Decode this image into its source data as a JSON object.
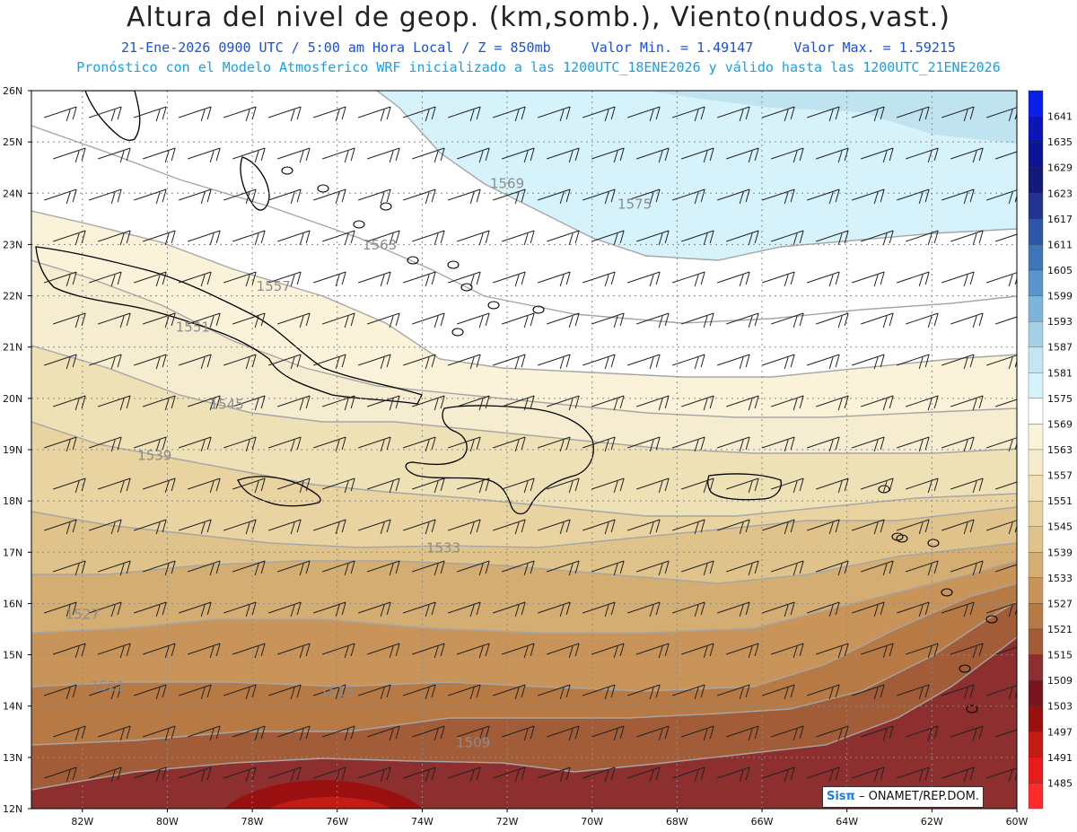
{
  "header": {
    "title": "Altura del nivel de geop. (km,somb.), Viento(nudos,vast.)",
    "valid_time": "21-Ene-2026  0900 UTC / 5:00 am Hora Local / Z = 850mb",
    "min_label": "Valor Min. = 1.49147",
    "max_label": "Valor Max. = 1.59215",
    "model_line": "Pronóstico con el Modelo Atmosferico WRF inicializado a las 1200UTC_18ENE2026 y válido hasta las  1200UTC_21ENE2026"
  },
  "logo": {
    "brand": "Sisπ",
    "text": "– ONAMET/REP.DOM."
  },
  "axes": {
    "lat_labels": [
      "26N",
      "25N",
      "24N",
      "23N",
      "22N",
      "21N",
      "20N",
      "19N",
      "18N",
      "17N",
      "16N",
      "15N",
      "14N",
      "13N",
      "12N"
    ],
    "lon_labels": [
      "82W",
      "80W",
      "78W",
      "76W",
      "74W",
      "72W",
      "70W",
      "68W",
      "66W",
      "64W",
      "62W",
      "60W"
    ],
    "lat_range": [
      12,
      26
    ],
    "lon_range": [
      -83.2,
      -60
    ]
  },
  "colorbar": {
    "levels": [
      "1641",
      "1635",
      "1629",
      "1623",
      "1617",
      "1611",
      "1605",
      "1599",
      "1593",
      "1587",
      "1581",
      "1575",
      "1569",
      "1563",
      "1557",
      "1551",
      "1545",
      "1539",
      "1533",
      "1527",
      "1521",
      "1515",
      "1509",
      "1503",
      "1497",
      "1491",
      "1485"
    ],
    "colors": [
      "#0a1fe8",
      "#0b15b8",
      "#0b1495",
      "#141a7a",
      "#23348f",
      "#2f55a6",
      "#3f75b9",
      "#5a95cb",
      "#7fb4da",
      "#a5d1e8",
      "#c4e6f1",
      "#d6f3fb",
      "#ffffff",
      "#fbf3d9",
      "#f6eccd",
      "#efe0b5",
      "#e8d3a0",
      "#dfc38a",
      "#d4ad72",
      "#c99459",
      "#b87a45",
      "#a35c38",
      "#8e2f2f",
      "#7a1520",
      "#9a1010",
      "#c41c14",
      "#e81a1a",
      "#ff2a2a"
    ]
  },
  "chart_data": {
    "type": "heatmap",
    "variable": "850mb geopotential height (m)",
    "contours": [
      {
        "value": 1575,
        "lat": 23.7,
        "lon": -69.0
      },
      {
        "value": 1569,
        "lat": 24.1,
        "lon": -72.0
      },
      {
        "value": 1563,
        "lat": 22.9,
        "lon": -75.0
      },
      {
        "value": 1557,
        "lat": 22.1,
        "lon": -77.5
      },
      {
        "value": 1551,
        "lat": 21.3,
        "lon": -79.4
      },
      {
        "value": 1545,
        "lat": 19.8,
        "lon": -78.6
      },
      {
        "value": 1539,
        "lat": 18.8,
        "lon": -80.3
      },
      {
        "value": 1533,
        "lat": 17.0,
        "lon": -73.5
      },
      {
        "value": 1527,
        "lat": 15.7,
        "lon": -82.0
      },
      {
        "value": 1521,
        "lat": 14.3,
        "lon": -81.4
      },
      {
        "value": 1515,
        "lat": 14.2,
        "lon": -76.0
      },
      {
        "value": 1509,
        "lat": 13.2,
        "lon": -72.8
      }
    ],
    "wind_barbs": "easterly to east-northeasterly, 10-25 kt"
  }
}
